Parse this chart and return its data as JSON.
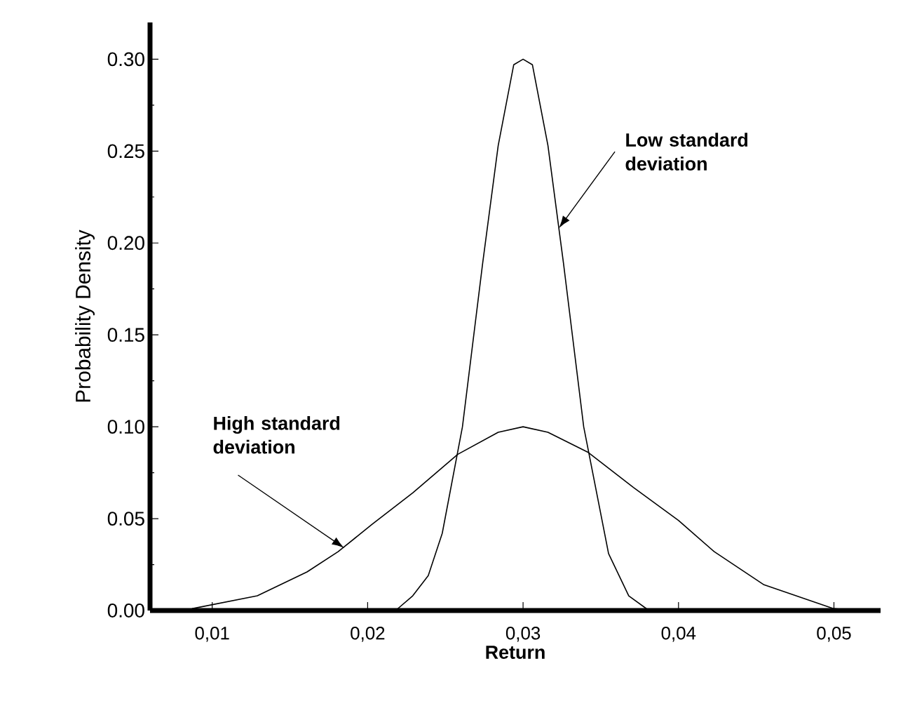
{
  "chart_data": {
    "type": "line",
    "xlabel": "Return",
    "ylabel": "Probability Density",
    "xlim": [
      0.006,
      0.053
    ],
    "ylim": [
      0,
      0.32
    ],
    "xticks": [
      {
        "value": 0.01,
        "label": "0,01"
      },
      {
        "value": 0.02,
        "label": "0,02"
      },
      {
        "value": 0.03,
        "label": "0,03"
      },
      {
        "value": 0.04,
        "label": "0,04"
      },
      {
        "value": 0.05,
        "label": "0,05"
      }
    ],
    "yticks": [
      {
        "value": 0,
        "label": "0.00"
      },
      {
        "value": 0.05,
        "label": "0.05"
      },
      {
        "value": 0.1,
        "label": "0.10"
      },
      {
        "value": 0.15,
        "label": "0.15"
      },
      {
        "value": 0.2,
        "label": "0.20"
      },
      {
        "value": 0.25,
        "label": "0.25"
      },
      {
        "value": 0.3,
        "label": "0.30"
      }
    ],
    "grid": false,
    "marker": "none",
    "line_style": "solid",
    "series": [
      {
        "color": "#000000",
        "x": [
          0.0087,
          0.0129,
          0.0161,
          0.0181,
          0.0203,
          0.0229,
          0.0258,
          0.0284,
          0.03,
          0.0316,
          0.0342,
          0.0371,
          0.04,
          0.0423,
          0.0455,
          0.05,
          0.0515
        ],
        "values": [
          0.001,
          0.008,
          0.021,
          0.032,
          0.047,
          0.064,
          0.085,
          0.097,
          0.1,
          0.097,
          0.086,
          0.067,
          0.049,
          0.032,
          0.014,
          0.001,
          0.0
        ]
      },
      {
        "color": "#000000",
        "x": [
          0.0218,
          0.0229,
          0.0239,
          0.0248,
          0.0261,
          0.0274,
          0.0284,
          0.0294,
          0.03,
          0.0306,
          0.0316,
          0.0326,
          0.0339,
          0.0355,
          0.0368,
          0.0381
        ],
        "values": [
          0.0,
          0.008,
          0.019,
          0.042,
          0.1,
          0.189,
          0.253,
          0.297,
          0.3,
          0.297,
          0.253,
          0.189,
          0.1,
          0.031,
          0.008,
          0.0
        ]
      }
    ],
    "annotations": [
      {
        "text": "Low standard deviation",
        "x": 0.0323,
        "y": 0.208
      },
      {
        "text": "High standard deviation",
        "x": 0.0185,
        "y": 0.034
      }
    ]
  }
}
